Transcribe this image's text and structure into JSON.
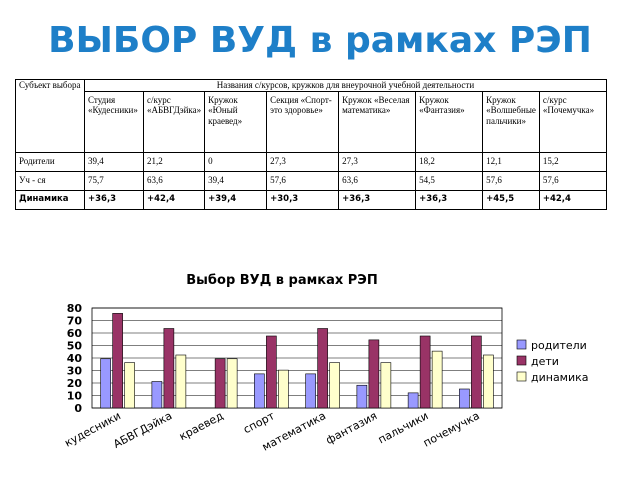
{
  "page": {
    "title": "ВЫБОР ВУД в рамках РЭП"
  },
  "table": {
    "corner": "Субъект выбора",
    "group_header": "Названия с/курсов, кружков для внеурочной учебной деятельности",
    "columns": [
      "Студия «Кудесники»",
      "с/курс «АБВГДэйка»",
      "Кружок «Юный краевед»",
      "Секция «Спорт-это здоровье»",
      "Кружок «Веселая математика»",
      "Кружок «Фантазия»",
      "Кружок «Волшебные пальчики»",
      "с/курс «Почемучка»"
    ],
    "rows": [
      {
        "label": "Родители",
        "values": [
          "39,4",
          "21,2",
          "0",
          "27,3",
          "27,3",
          "18,2",
          "12,1",
          "15,2"
        ]
      },
      {
        "label": "Уч - ся",
        "values": [
          "75,7",
          "63,6",
          "39,4",
          "57,6",
          "63,6",
          "54,5",
          "57,6",
          "57,6"
        ]
      },
      {
        "label": "Динамика",
        "values": [
          "+36,3",
          "+42,4",
          "+39,4",
          "+30,3",
          "+36,3",
          "+36,3",
          "+45,5",
          "+42,4"
        ]
      }
    ]
  },
  "chart_data": {
    "type": "bar",
    "title": "Выбор ВУД в рамках РЭП",
    "categories": [
      "кудесники",
      "АБВГДэйка",
      "краевед",
      "спорт",
      "математика",
      "фантазия",
      "пальчики",
      "почемучка"
    ],
    "series": [
      {
        "name": "родители",
        "color": "#9999ff",
        "values": [
          39.4,
          21.2,
          0,
          27.3,
          27.3,
          18.2,
          12.1,
          15.2
        ]
      },
      {
        "name": "дети",
        "color": "#993366",
        "values": [
          75.7,
          63.6,
          39.4,
          57.6,
          63.6,
          54.5,
          57.6,
          57.6
        ]
      },
      {
        "name": "динамика",
        "color": "#ffffcc",
        "values": [
          36.3,
          42.4,
          39.4,
          30.3,
          36.3,
          36.3,
          45.5,
          42.4
        ]
      }
    ],
    "ylim": [
      0,
      80
    ],
    "yticks": [
      "0",
      "10",
      "20",
      "30",
      "40",
      "50",
      "60",
      "70",
      "80"
    ],
    "grid": true,
    "legend": "right"
  }
}
